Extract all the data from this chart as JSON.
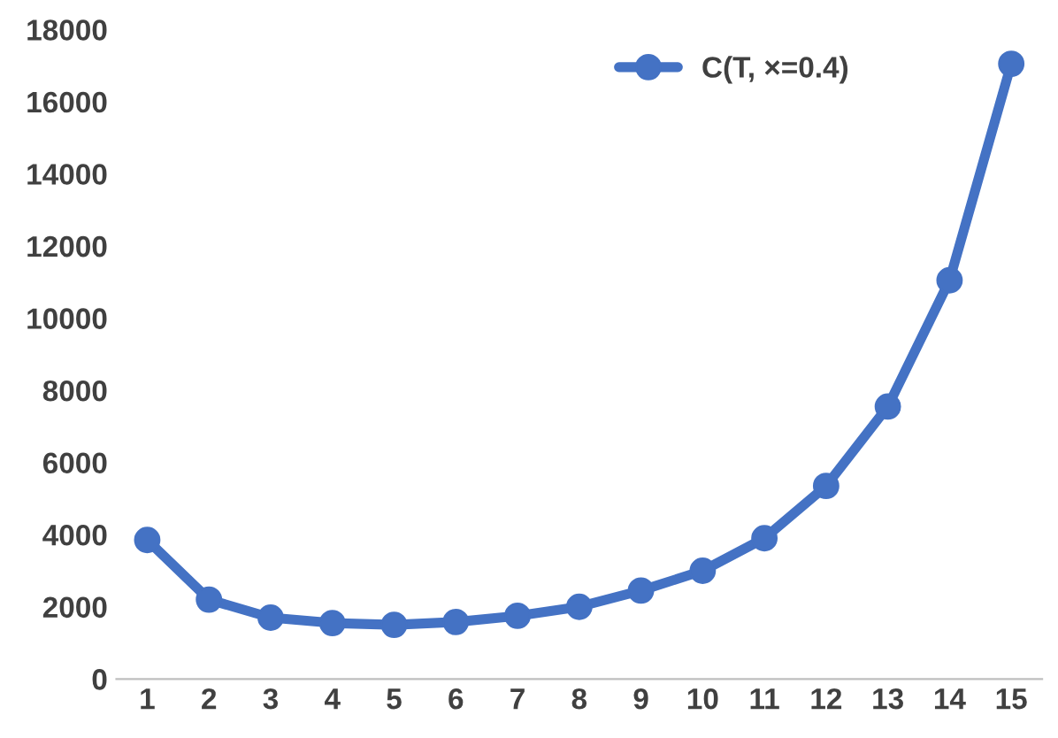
{
  "chart_data": {
    "type": "line",
    "categories": [
      "1",
      "2",
      "3",
      "4",
      "5",
      "6",
      "7",
      "8",
      "9",
      "10",
      "11",
      "12",
      "13",
      "14",
      "15"
    ],
    "series": [
      {
        "name": "C(T, ×=0.4)",
        "color": "#4472c4",
        "values": [
          3850,
          2200,
          1700,
          1550,
          1500,
          1580,
          1750,
          2000,
          2450,
          3000,
          3900,
          5350,
          7550,
          11050,
          17050
        ]
      }
    ],
    "ylim": [
      0,
      18000
    ],
    "yticks": [
      0,
      2000,
      4000,
      6000,
      8000,
      10000,
      12000,
      14000,
      16000,
      18000
    ],
    "grid": false,
    "legend": "top right",
    "marker": "circle",
    "line_style": "solid"
  }
}
